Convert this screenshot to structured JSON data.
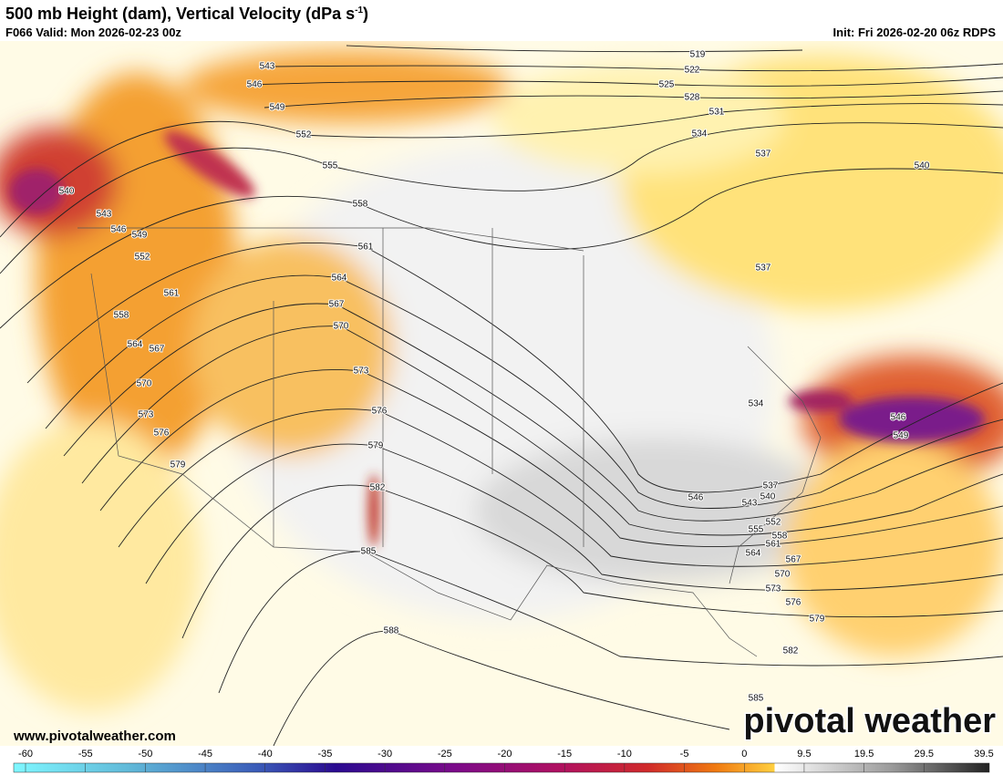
{
  "header": {
    "title": "500 mb Height (dam), Vertical Velocity (dPa s",
    "title_sup": "-1",
    "title_end": ")",
    "valid": "F066 Valid: Mon 2026-02-23 00z",
    "init": "Init: Fri 2026-02-20 06z RDPS"
  },
  "map": {
    "contour_labels": [
      519,
      522,
      525,
      528,
      531,
      534,
      537,
      540,
      537,
      534,
      543,
      546,
      549,
      552,
      555,
      558,
      561,
      564,
      567,
      570,
      573,
      576,
      579,
      582,
      585,
      588,
      540,
      543,
      546,
      549,
      552,
      561,
      558,
      564,
      567,
      570,
      573,
      576,
      579,
      546,
      537,
      540,
      543,
      552,
      555,
      558,
      561,
      564,
      567,
      570,
      573,
      576,
      579,
      582,
      585,
      546,
      549
    ]
  },
  "colorbar": {
    "ticks": [
      -60,
      -55,
      -50,
      -45,
      -40,
      -35,
      -30,
      -25,
      -20,
      -15,
      -10,
      -5,
      0,
      9.5,
      19.5,
      29.5,
      39.5
    ]
  },
  "footer": {
    "website": "www.pivotalweather.com",
    "logo": "pivotal weather"
  }
}
